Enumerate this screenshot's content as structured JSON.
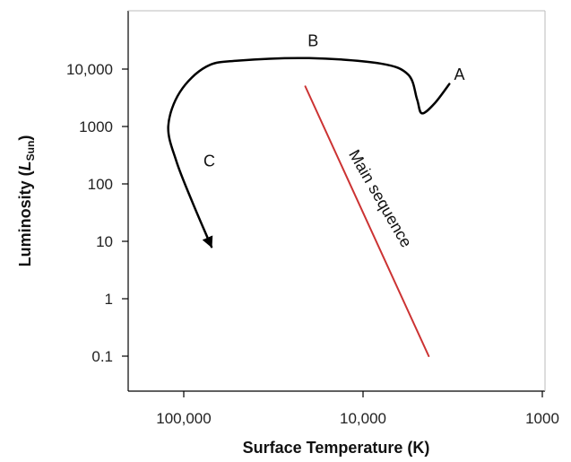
{
  "chart_data": {
    "type": "line",
    "x_axis": {
      "label": "Surface Temperature (K)",
      "scale": "log",
      "direction": "decreasing-left-to-right",
      "ticks": [
        100000,
        10000,
        1000
      ],
      "tick_labels": [
        "100,000",
        "10,000",
        "1000"
      ]
    },
    "y_axis": {
      "label_main": "Luminosity (",
      "label_symbol": "L",
      "label_subscript": "Sun",
      "label_close": ")",
      "scale": "log",
      "ticks": [
        0.1,
        1,
        10,
        100,
        1000,
        10000
      ],
      "tick_labels": [
        "0.1",
        "1",
        "10",
        "100",
        "1000",
        "10,000"
      ]
    },
    "series": [
      {
        "name": "Main sequence",
        "color": "#cc3333",
        "points": [
          {
            "temperature": 21000,
            "luminosity": 5000
          },
          {
            "temperature": 4300,
            "luminosity": 0.1
          }
        ]
      },
      {
        "color": "#000000",
        "arrow_at_end": true,
        "points": [
          {
            "temperature": 3300,
            "luminosity": 5500
          },
          {
            "temperature": 4000,
            "luminosity": 2500
          },
          {
            "temperature": 4700,
            "luminosity": 1700
          },
          {
            "temperature": 5000,
            "luminosity": 3000
          },
          {
            "temperature": 5600,
            "luminosity": 8000
          },
          {
            "temperature": 8000,
            "luminosity": 12500
          },
          {
            "temperature": 20000,
            "luminosity": 15500
          },
          {
            "temperature": 50000,
            "luminosity": 14000
          },
          {
            "temperature": 75000,
            "luminosity": 11000
          },
          {
            "temperature": 105000,
            "luminosity": 4000
          },
          {
            "temperature": 122000,
            "luminosity": 1000
          },
          {
            "temperature": 110000,
            "luminosity": 250
          },
          {
            "temperature": 90000,
            "luminosity": 50
          },
          {
            "temperature": 70000,
            "luminosity": 8
          }
        ]
      }
    ],
    "annotations": [
      {
        "text": "A",
        "temperature": 2900,
        "luminosity": 6500
      },
      {
        "text": "B",
        "temperature": 19000,
        "luminosity": 25000
      },
      {
        "text": "C",
        "temperature": 72000,
        "luminosity": 200
      },
      {
        "text": "Main sequence",
        "temperature": 8500,
        "luminosity": 50,
        "rotation_deg": 60
      }
    ]
  }
}
